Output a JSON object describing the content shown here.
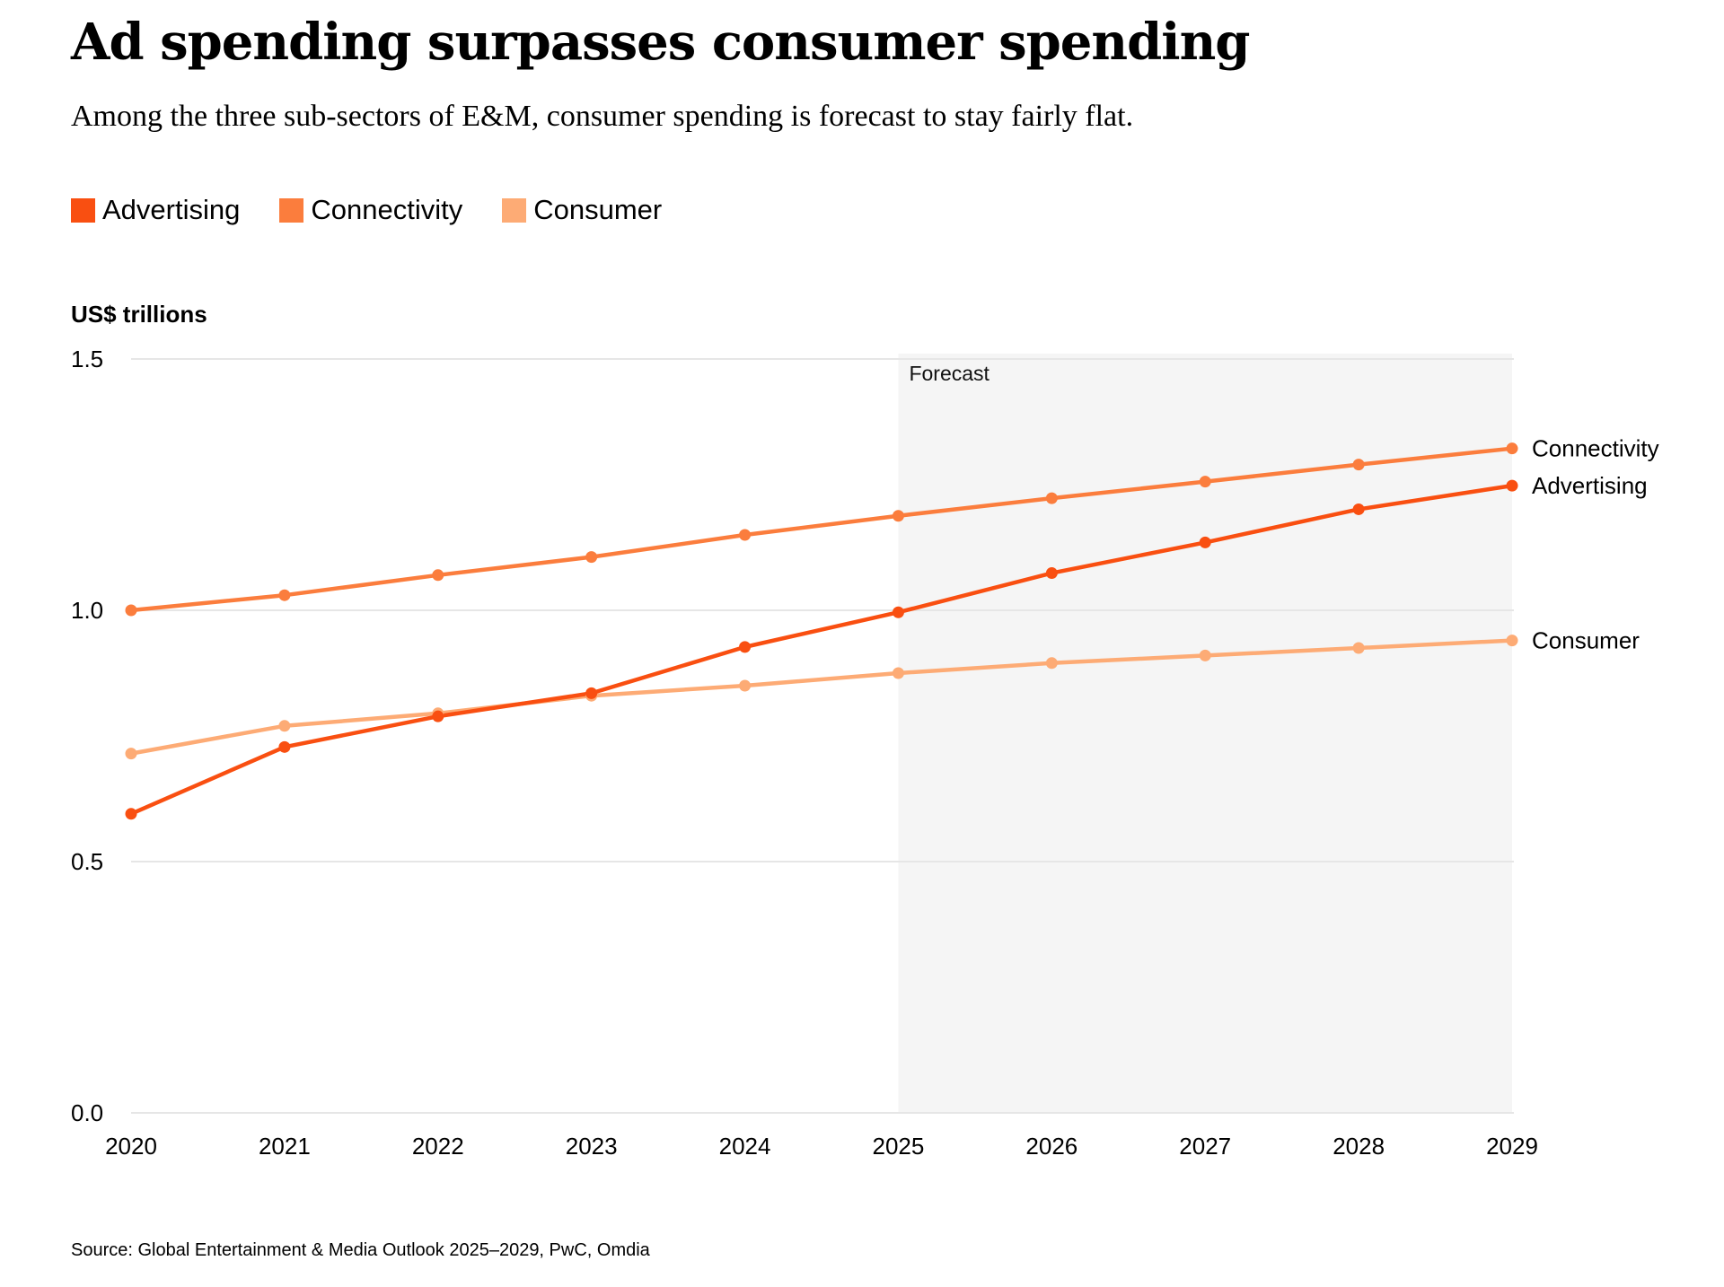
{
  "title": "Ad spending surpasses consumer spending",
  "subtitle": "Among the three sub-sectors of E&M, consumer spending is forecast to stay fairly flat.",
  "source": "Source: Global Entertainment & Media Outlook 2025–2029, PwC, Omdia",
  "colors": {
    "advertising": "#f94f11",
    "connectivity": "#fb7d3d",
    "consumer": "#fdab75",
    "forecast_band": "#f5f5f5",
    "grid": "#e6e6e6"
  },
  "chart_data": {
    "type": "line",
    "title": "Ad spending surpasses consumer spending",
    "subtitle": "Among the three sub-sectors of E&M, consumer spending is forecast to stay fairly flat.",
    "ylabel": "US$ trillions",
    "xlabel": "",
    "ylim": [
      0,
      1.5
    ],
    "yticks": [
      "0.0",
      "0.5",
      "1.0",
      "1.5"
    ],
    "ytick_values": [
      0,
      0.5,
      1.0,
      1.5
    ],
    "x": [
      "2020",
      "2021",
      "2022",
      "2023",
      "2024",
      "2025",
      "2026",
      "2027",
      "2028",
      "2029"
    ],
    "grid": true,
    "legend": "top-left",
    "forecast": {
      "label": "Forecast",
      "from": "2025",
      "to": "2029"
    },
    "series": [
      {
        "name": "Advertising",
        "color_key": "advertising",
        "values": [
          0.595,
          0.728,
          0.789,
          0.835,
          0.927,
          0.996,
          1.074,
          1.135,
          1.201,
          1.248
        ]
      },
      {
        "name": "Connectivity",
        "color_key": "connectivity",
        "values": [
          1.0,
          1.03,
          1.07,
          1.106,
          1.15,
          1.188,
          1.223,
          1.256,
          1.29,
          1.322
        ]
      },
      {
        "name": "Consumer",
        "color_key": "consumer",
        "values": [
          0.715,
          0.77,
          0.795,
          0.83,
          0.85,
          0.875,
          0.895,
          0.91,
          0.925,
          0.94
        ]
      }
    ]
  }
}
